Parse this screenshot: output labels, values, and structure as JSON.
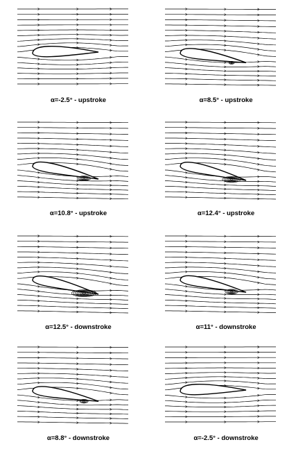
{
  "figure": {
    "panels": [
      {
        "caption": "α=-2.5° - upstroke"
      },
      {
        "caption": "α=8.5° - upstroke"
      },
      {
        "caption": "α=10.8° - upstroke"
      },
      {
        "caption": "α=12.4° - upstroke"
      },
      {
        "caption": "α=12.5° - downstroke"
      },
      {
        "caption": "α=11° - downstroke"
      },
      {
        "caption": "α=8.8° - downstroke"
      },
      {
        "caption": "α=-2.5° - downstroke"
      }
    ]
  }
}
